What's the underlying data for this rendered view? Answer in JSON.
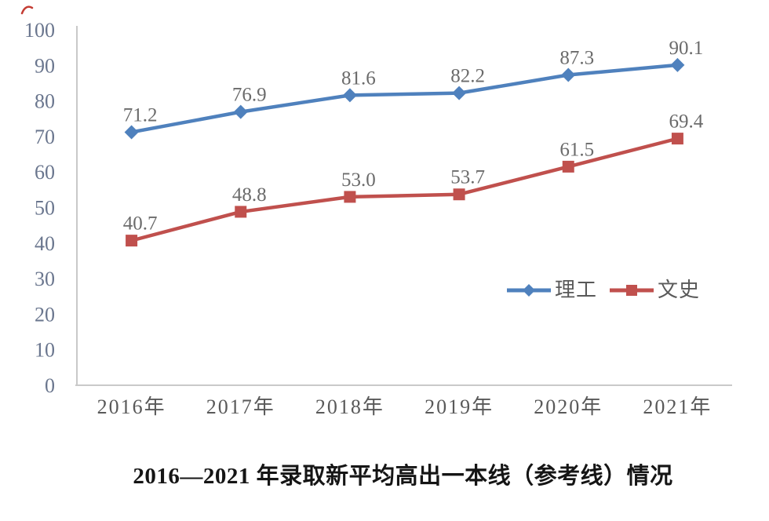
{
  "chart_data": {
    "type": "line",
    "categories": [
      "2016年",
      "2017年",
      "2018年",
      "2019年",
      "2020年",
      "2021年"
    ],
    "series": [
      {
        "name": "理工",
        "values": [
          71.2,
          76.9,
          81.6,
          82.2,
          87.3,
          90.1
        ],
        "color": "#4F81BD",
        "marker": "diamond"
      },
      {
        "name": "文史",
        "values": [
          40.7,
          48.8,
          53.0,
          53.7,
          61.5,
          69.4
        ],
        "color": "#C0504D",
        "marker": "square"
      }
    ],
    "ylim": [
      0,
      100
    ],
    "ytick_step": 10,
    "yticks": [
      0,
      10,
      20,
      30,
      40,
      50,
      60,
      70,
      80,
      90,
      100
    ],
    "grid": false,
    "data_labels": true,
    "label_decimals": 1,
    "legend_position": "middle-right",
    "axis_color": "#C9C9C9",
    "y_tick_label_color": "#6A768E",
    "x_tick_label_color": "#595959",
    "data_label_color": "#6B6B6B",
    "title": "",
    "xlabel": "",
    "ylabel": ""
  },
  "caption": {
    "text": "2016—2021 年录取新平均高出一本线（参考线）情况"
  },
  "artifacts": {
    "red_pen_mark_color": "#C43C33"
  }
}
